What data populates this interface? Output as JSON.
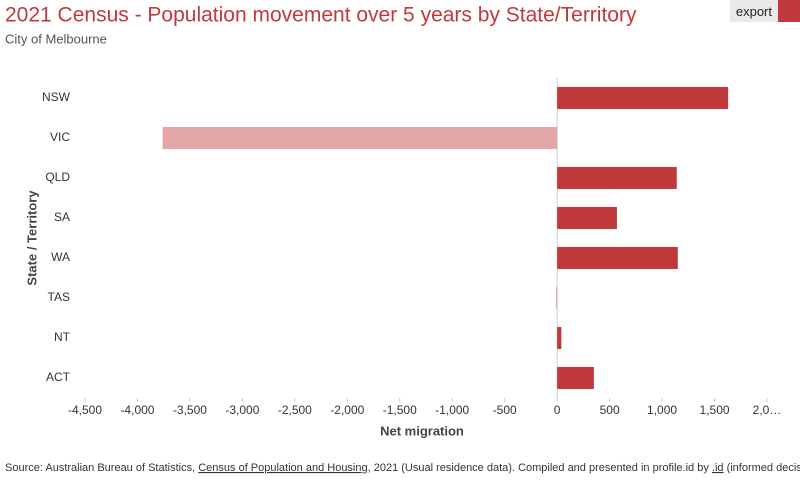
{
  "chart_data": {
    "type": "hbar",
    "title": "2021 Census - Population movement over 5 years by State/Territory",
    "subtitle": "City of Melbourne",
    "categories": [
      "NSW",
      "VIC",
      "QLD",
      "SA",
      "WA",
      "TAS",
      "NT",
      "ACT"
    ],
    "values": [
      1630,
      -3760,
      1140,
      570,
      1150,
      -10,
      40,
      350
    ],
    "positive_color": "#c0393b",
    "negative_color": "#e3a6a6",
    "xlabel": "Net migration",
    "ylabel": "State / Territory",
    "xlim": [
      -4500,
      2000
    ],
    "xticks": [
      {
        "value": -4500,
        "label": "-4,500"
      },
      {
        "value": -4000,
        "label": "-4,000"
      },
      {
        "value": -3500,
        "label": "-3,500"
      },
      {
        "value": -3000,
        "label": "-3,000"
      },
      {
        "value": -2500,
        "label": "-2,500"
      },
      {
        "value": -2000,
        "label": "-2,000"
      },
      {
        "value": -1500,
        "label": "-1,500"
      },
      {
        "value": -1000,
        "label": "-1,000"
      },
      -500,
      0,
      500,
      {
        "value": 1000,
        "label": "1,000"
      },
      {
        "value": 1500,
        "label": "1,500"
      },
      {
        "value": 2000,
        "label": "2,0…"
      }
    ],
    "grid": false
  },
  "export": "export",
  "source": [
    "Source: Australian Bureau of Statistics, ",
    "Census of Population and Housing",
    ", 2021 (Usual residence data). Compiled and presented in profile.id by ",
    ".id",
    " (informed decisions)."
  ]
}
